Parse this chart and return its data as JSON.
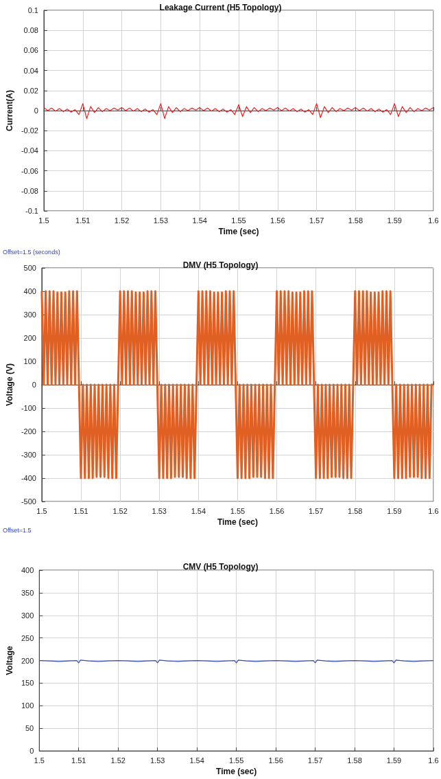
{
  "chart_data": [
    {
      "type": "line",
      "title": "Leakage Current (H5 Topology)",
      "xlabel": "Time (sec)",
      "ylabel": "Current(A)",
      "grid": true,
      "xlim": [
        1.5,
        1.6
      ],
      "xticks": [
        1.5,
        1.51,
        1.52,
        1.53,
        1.54,
        1.55,
        1.56,
        1.57,
        1.58,
        1.59,
        1.6
      ],
      "ylim": [
        -0.1,
        0.1
      ],
      "yticks": [
        -0.1,
        -0.08,
        -0.06,
        -0.04,
        -0.02,
        0,
        0.02,
        0.04,
        0.06,
        0.08,
        0.1
      ],
      "annotations": [
        "Offset=1.5 (seconds)"
      ],
      "series": [
        {
          "color": "#ee2020",
          "x": [
            1.5,
            1.501,
            1.502,
            1.503,
            1.504,
            1.505,
            1.506,
            1.507,
            1.508,
            1.509,
            1.51,
            1.511,
            1.512,
            1.513,
            1.514,
            1.515,
            1.516,
            1.517,
            1.518,
            1.519,
            1.52,
            1.521,
            1.522,
            1.523,
            1.524,
            1.525,
            1.526,
            1.527,
            1.528,
            1.529,
            1.53,
            1.531,
            1.532,
            1.533,
            1.534,
            1.535,
            1.536,
            1.537,
            1.538,
            1.539,
            1.54,
            1.541,
            1.542,
            1.543,
            1.544,
            1.545,
            1.546,
            1.547,
            1.548,
            1.549,
            1.55,
            1.551,
            1.552,
            1.553,
            1.554,
            1.555,
            1.556,
            1.557,
            1.558,
            1.559,
            1.56,
            1.561,
            1.562,
            1.563,
            1.564,
            1.565,
            1.566,
            1.567,
            1.568,
            1.569,
            1.57,
            1.571,
            1.572,
            1.573,
            1.574,
            1.575,
            1.576,
            1.577,
            1.578,
            1.579,
            1.58,
            1.581,
            1.582,
            1.583,
            1.584,
            1.585,
            1.586,
            1.587,
            1.588,
            1.589,
            1.59,
            1.591,
            1.592,
            1.593,
            1.594,
            1.595,
            1.596,
            1.597,
            1.598,
            1.599,
            1.6
          ],
          "values": [
            0.003,
            0,
            0.0025,
            -0.0005,
            0.002,
            -0.001,
            0.0015,
            -0.0015,
            0.001,
            -0.004,
            0.007,
            -0.008,
            0.004,
            -0.002,
            0.003,
            -0.001,
            0.002,
            0,
            0.0025,
            0.0005,
            0.003,
            0,
            0.0025,
            -0.0005,
            0.002,
            -0.001,
            0.0015,
            -0.0015,
            0.001,
            -0.004,
            0.007,
            -0.008,
            0.004,
            -0.002,
            0.003,
            -0.001,
            0.002,
            0,
            0.0025,
            0.0005,
            0.003,
            0,
            0.0025,
            -0.0005,
            0.002,
            -0.001,
            0.0015,
            -0.0015,
            0.001,
            -0.004,
            0.006,
            -0.006,
            0.004,
            -0.002,
            0.003,
            -0.001,
            0.002,
            0,
            0.0025,
            0.0005,
            0.003,
            0,
            0.0025,
            -0.0005,
            0.002,
            -0.001,
            0.0015,
            -0.0015,
            0.001,
            -0.004,
            0.007,
            -0.007,
            0.004,
            -0.002,
            0.003,
            -0.001,
            0.002,
            0,
            0.0025,
            0.0005,
            0.003,
            0,
            0.0025,
            -0.0005,
            0.002,
            -0.001,
            0.0015,
            -0.0015,
            0.001,
            -0.004,
            0.007,
            -0.006,
            0.004,
            -0.002,
            0.003,
            -0.001,
            0.002,
            0,
            0.0025,
            0.0005,
            0.003
          ]
        }
      ]
    },
    {
      "type": "line",
      "title": "DMV (H5 Topology)",
      "xlabel": "Time (sec)",
      "ylabel": "Voltage (V)",
      "grid": true,
      "xlim": [
        1.5,
        1.6
      ],
      "xticks": [
        1.5,
        1.51,
        1.52,
        1.53,
        1.54,
        1.55,
        1.56,
        1.57,
        1.58,
        1.59,
        1.6
      ],
      "ylim": [
        -500,
        500
      ],
      "yticks": [
        -500,
        -400,
        -300,
        -200,
        -100,
        0,
        100,
        200,
        300,
        400,
        500
      ],
      "annotations": [
        "Offset=1.5"
      ],
      "series": [
        {
          "color": "#e06024",
          "x": [
            1.5,
            1.5005,
            1.501,
            1.5015,
            1.502,
            1.5025,
            1.503,
            1.5035,
            1.504,
            1.5045,
            1.505,
            1.5055,
            1.506,
            1.5065,
            1.507,
            1.5075,
            1.508,
            1.5085,
            1.509,
            1.5095,
            1.51,
            1.5105,
            1.511,
            1.5115,
            1.512,
            1.5125,
            1.513,
            1.5135,
            1.514,
            1.5145,
            1.515,
            1.5155,
            1.516,
            1.5165,
            1.517,
            1.5175,
            1.518,
            1.5185,
            1.519,
            1.5195,
            1.52,
            1.5205,
            1.521,
            1.5215,
            1.522,
            1.5225,
            1.523,
            1.5235,
            1.524,
            1.5245,
            1.525,
            1.5255,
            1.526,
            1.5265,
            1.527,
            1.5275,
            1.528,
            1.5285,
            1.529,
            1.5295,
            1.53,
            1.5305,
            1.531,
            1.5315,
            1.532,
            1.5325,
            1.533,
            1.5335,
            1.534,
            1.5345,
            1.535,
            1.5355,
            1.536,
            1.5365,
            1.537,
            1.5375,
            1.538,
            1.5385,
            1.539,
            1.5395,
            1.54,
            1.5405,
            1.541,
            1.5415,
            1.542,
            1.5425,
            1.543,
            1.5435,
            1.544,
            1.5445,
            1.545,
            1.5455,
            1.546,
            1.5465,
            1.547,
            1.5475,
            1.548,
            1.5485,
            1.549,
            1.5495,
            1.55,
            1.5505,
            1.551,
            1.5515,
            1.552,
            1.5525,
            1.553,
            1.5535,
            1.554,
            1.5545,
            1.555,
            1.5555,
            1.556,
            1.5565,
            1.557,
            1.5575,
            1.558,
            1.5585,
            1.559,
            1.5595,
            1.56,
            1.5605,
            1.561,
            1.5615,
            1.562,
            1.5625,
            1.563,
            1.5635,
            1.564,
            1.5645,
            1.565,
            1.5655,
            1.566,
            1.5665,
            1.567,
            1.5675,
            1.568,
            1.5685,
            1.569,
            1.5695,
            1.57,
            1.5705,
            1.571,
            1.5715,
            1.572,
            1.5725,
            1.573,
            1.5735,
            1.574,
            1.5745,
            1.575,
            1.5755,
            1.576,
            1.5765,
            1.577,
            1.5775,
            1.578,
            1.5785,
            1.579,
            1.5795,
            1.58,
            1.5805,
            1.581,
            1.5815,
            1.582,
            1.5825,
            1.583,
            1.5835,
            1.584,
            1.5845,
            1.585,
            1.5855,
            1.586,
            1.5865,
            1.587,
            1.5875,
            1.588,
            1.5885,
            1.589,
            1.5895,
            1.59,
            1.5905,
            1.591,
            1.5915,
            1.592,
            1.5925,
            1.593,
            1.5935,
            1.594,
            1.5945,
            1.595,
            1.5955,
            1.596,
            1.5965,
            1.597,
            1.5975,
            1.598,
            1.5985,
            1.599,
            1.5995,
            1.6
          ],
          "values": [
            400,
            0,
            400,
            0,
            400,
            0,
            400,
            0,
            395,
            0,
            395,
            0,
            395,
            0,
            400,
            0,
            400,
            0,
            400,
            0,
            -400,
            0,
            -400,
            0,
            -400,
            0,
            -400,
            0,
            -395,
            0,
            -395,
            0,
            -395,
            0,
            -400,
            0,
            -400,
            0,
            -400,
            0,
            400,
            0,
            400,
            0,
            400,
            0,
            400,
            0,
            395,
            0,
            395,
            0,
            395,
            0,
            400,
            0,
            400,
            0,
            400,
            0,
            -400,
            0,
            -400,
            0,
            -400,
            0,
            -400,
            0,
            -395,
            0,
            -395,
            0,
            -395,
            0,
            -400,
            0,
            -400,
            0,
            -400,
            0,
            400,
            0,
            400,
            0,
            400,
            0,
            400,
            0,
            395,
            0,
            395,
            0,
            395,
            0,
            400,
            0,
            400,
            0,
            400,
            0,
            -400,
            0,
            -400,
            0,
            -400,
            0,
            -400,
            0,
            -395,
            0,
            -395,
            0,
            -395,
            0,
            -400,
            0,
            -400,
            0,
            -400,
            0,
            400,
            0,
            400,
            0,
            400,
            0,
            400,
            0,
            395,
            0,
            395,
            0,
            395,
            0,
            400,
            0,
            400,
            0,
            400,
            0,
            -400,
            0,
            -400,
            0,
            -400,
            0,
            -400,
            0,
            -395,
            0,
            -395,
            0,
            -395,
            0,
            -400,
            0,
            -400,
            0,
            -400,
            0,
            400,
            0,
            400,
            0,
            400,
            0,
            400,
            0,
            395,
            0,
            395,
            0,
            395,
            0,
            400,
            0,
            400,
            0,
            400,
            0,
            -400,
            0,
            -400,
            0,
            -400,
            0,
            -400,
            0,
            -395,
            0,
            -395,
            0,
            -395,
            0,
            -400,
            0,
            -400,
            0,
            -400,
            0,
            0
          ]
        }
      ]
    },
    {
      "type": "line",
      "title": "CMV (H5 Topology)",
      "xlabel": "Time (sec)",
      "ylabel": "Voltage",
      "grid": true,
      "xlim": [
        1.5,
        1.6
      ],
      "xticks": [
        1.5,
        1.51,
        1.52,
        1.53,
        1.54,
        1.55,
        1.56,
        1.57,
        1.58,
        1.59,
        1.6
      ],
      "ylim": [
        0,
        400
      ],
      "yticks": [
        0,
        50,
        100,
        150,
        200,
        250,
        300,
        350,
        400
      ],
      "series": [
        {
          "color": "#3a4fb4",
          "x": [
            1.5,
            1.5025,
            1.505,
            1.5075,
            1.5095,
            1.51,
            1.5105,
            1.5125,
            1.515,
            1.5175,
            1.52,
            1.5225,
            1.525,
            1.5275,
            1.5295,
            1.53,
            1.5305,
            1.5325,
            1.535,
            1.5375,
            1.54,
            1.5425,
            1.545,
            1.5475,
            1.5495,
            1.55,
            1.5505,
            1.5525,
            1.555,
            1.5575,
            1.56,
            1.5625,
            1.565,
            1.5675,
            1.5695,
            1.57,
            1.5705,
            1.5725,
            1.575,
            1.5775,
            1.58,
            1.5825,
            1.585,
            1.5875,
            1.5895,
            1.59,
            1.5905,
            1.5925,
            1.595,
            1.5975,
            1.6
          ],
          "values": [
            200,
            199,
            198,
            199,
            200,
            195,
            201,
            199,
            198,
            199,
            200,
            199,
            198,
            199,
            200,
            195,
            201,
            199,
            198,
            199,
            200,
            199,
            198,
            199,
            200,
            195,
            201,
            199,
            198,
            199,
            200,
            199,
            198,
            199,
            200,
            195,
            201,
            199,
            198,
            199,
            200,
            199,
            198,
            199,
            200,
            195,
            201,
            199,
            198,
            199,
            200
          ]
        }
      ]
    }
  ]
}
